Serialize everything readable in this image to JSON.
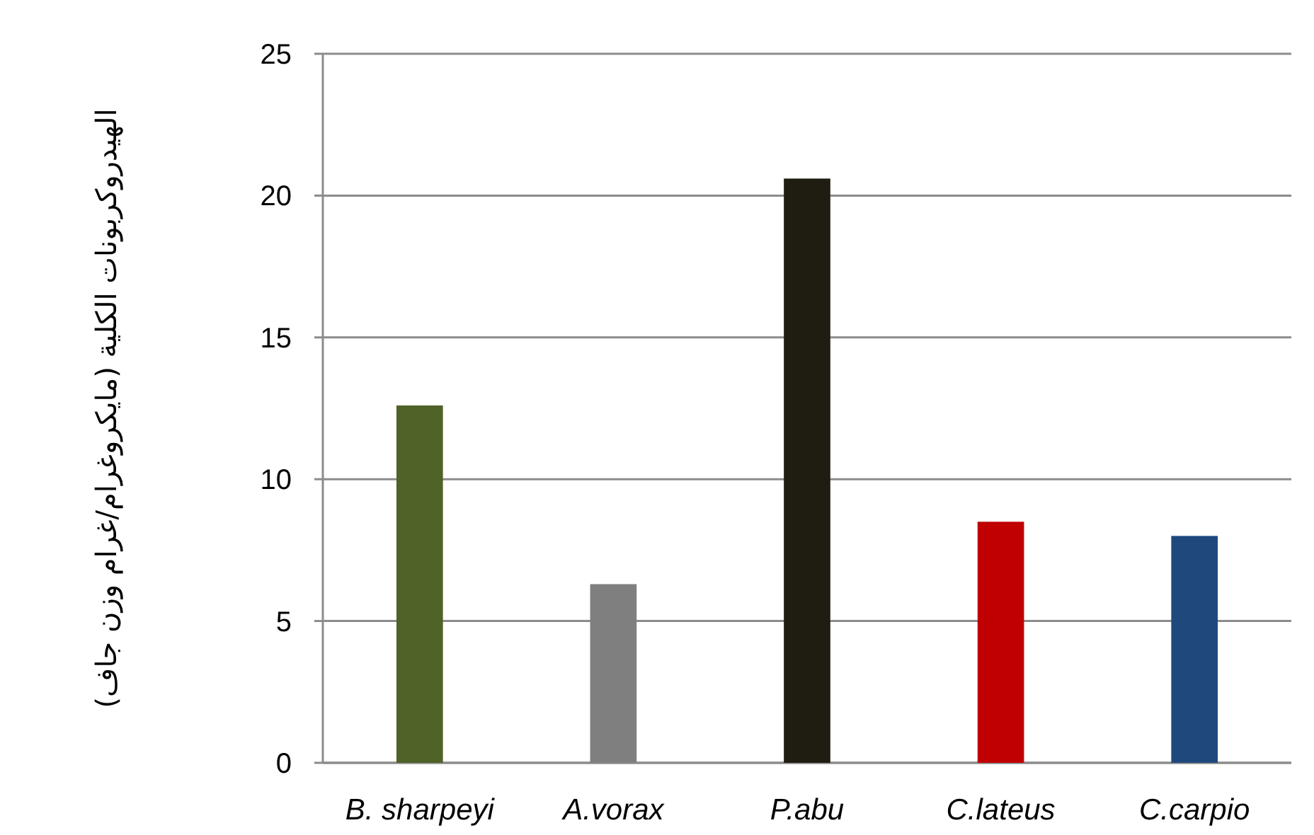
{
  "chart_data": {
    "type": "bar",
    "ylabel": "الهيدروكربونات الكلية (مايكروغرام/غرام وزن جاف)",
    "categories": [
      "B. sharpeyi",
      "A.vorax",
      "P.abu",
      "C.lateus",
      "C.carpio"
    ],
    "values": [
      12.6,
      6.3,
      20.6,
      8.5,
      8.0
    ],
    "colors": [
      "#4f6228",
      "#7f7f7f",
      "#1f1d12",
      "#c00000",
      "#1f497d"
    ],
    "ylim": [
      0,
      25
    ],
    "yticks": [
      0,
      5,
      10,
      15,
      20,
      25
    ],
    "grid": "y"
  }
}
